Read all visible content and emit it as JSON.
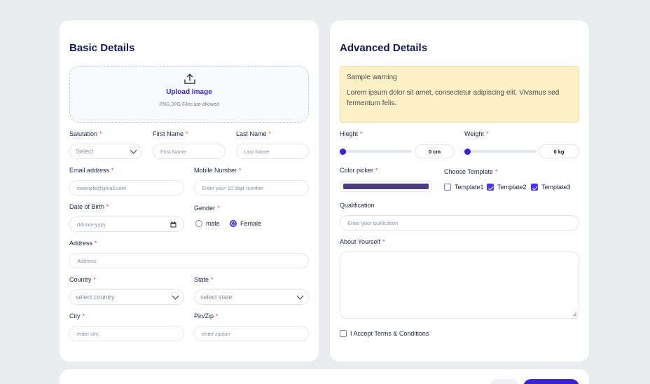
{
  "basic": {
    "title": "Basic Details",
    "upload": {
      "title": "Upload Image",
      "note": "PNG,JPG Files are allowed",
      "icon": "upload-icon"
    },
    "salutation": {
      "label": "Salutation",
      "value": "Select"
    },
    "first_name": {
      "label": "First Name",
      "placeholder": "First Name"
    },
    "last_name": {
      "label": "Last Name",
      "placeholder": "Last Name"
    },
    "email": {
      "label": "Email address",
      "placeholder": "example@gmail.com"
    },
    "mobile": {
      "label": "Mobile Number",
      "placeholder": "Enter your 10 digit number"
    },
    "dob": {
      "label": "Date of Birth",
      "placeholder": "dd-mm-yyyy",
      "icon": "calendar-icon"
    },
    "gender": {
      "label": "Gender",
      "options": [
        "male",
        "Female"
      ],
      "selected": "Female"
    },
    "address": {
      "label": "Address",
      "placeholder": "Address"
    },
    "country": {
      "label": "Country",
      "value": "select country"
    },
    "state": {
      "label": "State",
      "value": "select state"
    },
    "city": {
      "label": "City",
      "placeholder": "enter city"
    },
    "pin": {
      "label": "Pin/Zip",
      "placeholder": "enter zip/pin"
    }
  },
  "advanced": {
    "title": "Advanced Details",
    "warning": {
      "title": "Sample warning",
      "body": "Lorem ipsum dolor sit amet, consectetur adipiscing elit. Vivamus sed fermentum felis."
    },
    "height": {
      "label": "Hieght",
      "value": "0 cm",
      "level": 0
    },
    "weight": {
      "label": "Weight",
      "value": "0 kg",
      "level": 0
    },
    "color_picker": {
      "label": "Color picker",
      "color": "#4f3c7e"
    },
    "template": {
      "label": "Choose Template",
      "options": [
        {
          "label": "Template1",
          "checked": false
        },
        {
          "label": "Template2",
          "checked": true
        },
        {
          "label": "Template3",
          "checked": true
        }
      ]
    },
    "qualification": {
      "label": "Qualification",
      "placeholder": "Enter your qulification"
    },
    "about": {
      "label": "About Yourself"
    },
    "terms": {
      "label": "I Accept Terms & Conditions",
      "checked": false
    }
  },
  "required_marker": "*",
  "colors": {
    "accent": "#3b22d6",
    "background": "#eaecf0",
    "warning_bg": "#fdf0c6",
    "required": "#e5484d"
  }
}
